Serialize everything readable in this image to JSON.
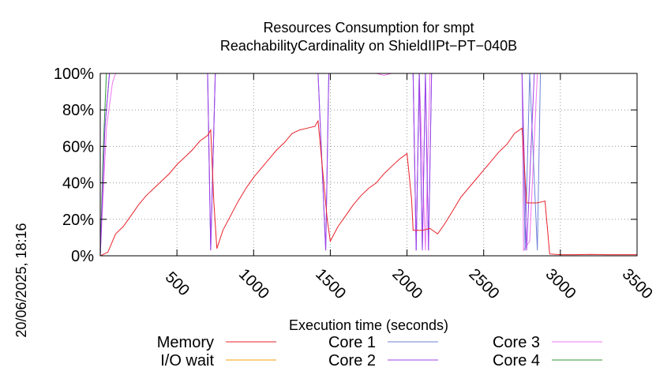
{
  "side_label": "20/06/2025, 18:16",
  "chart_data": {
    "type": "line",
    "title": "Resources Consumption for smpt",
    "subtitle": "ReachabilityCardinality on ShieldIIPt−PT−040B",
    "xlabel": "Execution time (seconds)",
    "ylabel": "",
    "xlim": [
      0,
      3500
    ],
    "ylim": [
      0,
      100
    ],
    "xticks": [
      500,
      1000,
      1500,
      2000,
      2500,
      3000,
      3500
    ],
    "yticks": [
      0,
      20,
      40,
      60,
      80,
      100
    ],
    "ytick_labels": [
      "0%",
      "20%",
      "40%",
      "60%",
      "80%",
      "100%"
    ],
    "grid": true,
    "legend_position": "bottom",
    "series": [
      {
        "name": "Memory",
        "color": "#e8222a",
        "points": [
          [
            0,
            0
          ],
          [
            50,
            2
          ],
          [
            100,
            12
          ],
          [
            150,
            16
          ],
          [
            200,
            22
          ],
          [
            250,
            28
          ],
          [
            300,
            33
          ],
          [
            350,
            37
          ],
          [
            400,
            41
          ],
          [
            450,
            45
          ],
          [
            500,
            50
          ],
          [
            550,
            54
          ],
          [
            600,
            58
          ],
          [
            650,
            63
          ],
          [
            700,
            66
          ],
          [
            720,
            69
          ],
          [
            740,
            30
          ],
          [
            760,
            4
          ],
          [
            800,
            14
          ],
          [
            850,
            22
          ],
          [
            900,
            30
          ],
          [
            950,
            37
          ],
          [
            1000,
            43
          ],
          [
            1050,
            48
          ],
          [
            1100,
            53
          ],
          [
            1150,
            58
          ],
          [
            1200,
            62
          ],
          [
            1250,
            67
          ],
          [
            1300,
            69
          ],
          [
            1350,
            70
          ],
          [
            1400,
            71
          ],
          [
            1420,
            74
          ],
          [
            1480,
            20
          ],
          [
            1500,
            8
          ],
          [
            1550,
            16
          ],
          [
            1600,
            22
          ],
          [
            1650,
            28
          ],
          [
            1700,
            33
          ],
          [
            1750,
            37
          ],
          [
            1800,
            40
          ],
          [
            1850,
            45
          ],
          [
            1900,
            49
          ],
          [
            1950,
            53
          ],
          [
            2000,
            56
          ],
          [
            2030,
            31
          ],
          [
            2040,
            14
          ],
          [
            2100,
            14
          ],
          [
            2150,
            15
          ],
          [
            2200,
            12
          ],
          [
            2250,
            18
          ],
          [
            2300,
            25
          ],
          [
            2350,
            32
          ],
          [
            2400,
            37
          ],
          [
            2450,
            42
          ],
          [
            2500,
            47
          ],
          [
            2550,
            52
          ],
          [
            2600,
            57
          ],
          [
            2650,
            61
          ],
          [
            2700,
            67
          ],
          [
            2750,
            70
          ],
          [
            2780,
            29
          ],
          [
            2850,
            29
          ],
          [
            2900,
            30
          ],
          [
            2930,
            1
          ],
          [
            3000,
            0.6
          ],
          [
            3100,
            0.6
          ],
          [
            3200,
            0.8
          ],
          [
            3300,
            0.6
          ],
          [
            3400,
            0.6
          ],
          [
            3500,
            0.6
          ]
        ]
      },
      {
        "name": "I/O wait",
        "color": "#f4a20b",
        "points": [
          [
            0,
            0
          ],
          [
            3500,
            0
          ]
        ]
      },
      {
        "name": "Core 1",
        "color": "#6e82d8",
        "points": [
          [
            0,
            0
          ],
          [
            30,
            70
          ],
          [
            60,
            100
          ],
          [
            700,
            100
          ],
          [
            720,
            3
          ],
          [
            750,
            100
          ],
          [
            1420,
            100
          ],
          [
            1470,
            3
          ],
          [
            1490,
            100
          ],
          [
            2040,
            100
          ],
          [
            2060,
            3
          ],
          [
            2080,
            100
          ],
          [
            2100,
            3
          ],
          [
            2120,
            100
          ],
          [
            2140,
            3
          ],
          [
            2160,
            100
          ],
          [
            2750,
            100
          ],
          [
            2770,
            3
          ],
          [
            2800,
            100
          ],
          [
            2850,
            3
          ],
          [
            2870,
            100
          ],
          [
            3500,
            100
          ]
        ]
      },
      {
        "name": "Core 2",
        "color": "#a040e8",
        "points": [
          [
            0,
            0
          ],
          [
            30,
            70
          ],
          [
            60,
            100
          ],
          [
            700,
            100
          ],
          [
            720,
            3
          ],
          [
            750,
            100
          ],
          [
            1420,
            100
          ],
          [
            1470,
            3
          ],
          [
            1490,
            100
          ],
          [
            2040,
            100
          ],
          [
            2060,
            3
          ],
          [
            2080,
            100
          ],
          [
            2100,
            3
          ],
          [
            2120,
            100
          ],
          [
            2140,
            3
          ],
          [
            2160,
            100
          ],
          [
            2750,
            100
          ],
          [
            2780,
            3
          ],
          [
            2830,
            100
          ],
          [
            2860,
            100
          ],
          [
            3500,
            100
          ]
        ]
      },
      {
        "name": "Core 3",
        "color": "#f075f0",
        "points": [
          [
            0,
            0
          ],
          [
            40,
            70
          ],
          [
            80,
            95
          ],
          [
            100,
            100
          ],
          [
            700,
            100
          ],
          [
            720,
            5
          ],
          [
            750,
            100
          ],
          [
            1800,
            100
          ],
          [
            1850,
            99
          ],
          [
            1900,
            100
          ],
          [
            2040,
            100
          ],
          [
            2060,
            3
          ],
          [
            2080,
            100
          ],
          [
            2120,
            3
          ],
          [
            2150,
            100
          ],
          [
            2750,
            100
          ],
          [
            2760,
            3
          ],
          [
            2800,
            8
          ],
          [
            2850,
            100
          ],
          [
            3500,
            100
          ]
        ]
      },
      {
        "name": "Core 4",
        "color": "#2f9a3a",
        "points": [
          [
            0,
            0
          ],
          [
            20,
            60
          ],
          [
            40,
            100
          ],
          [
            3500,
            100
          ]
        ]
      }
    ]
  }
}
